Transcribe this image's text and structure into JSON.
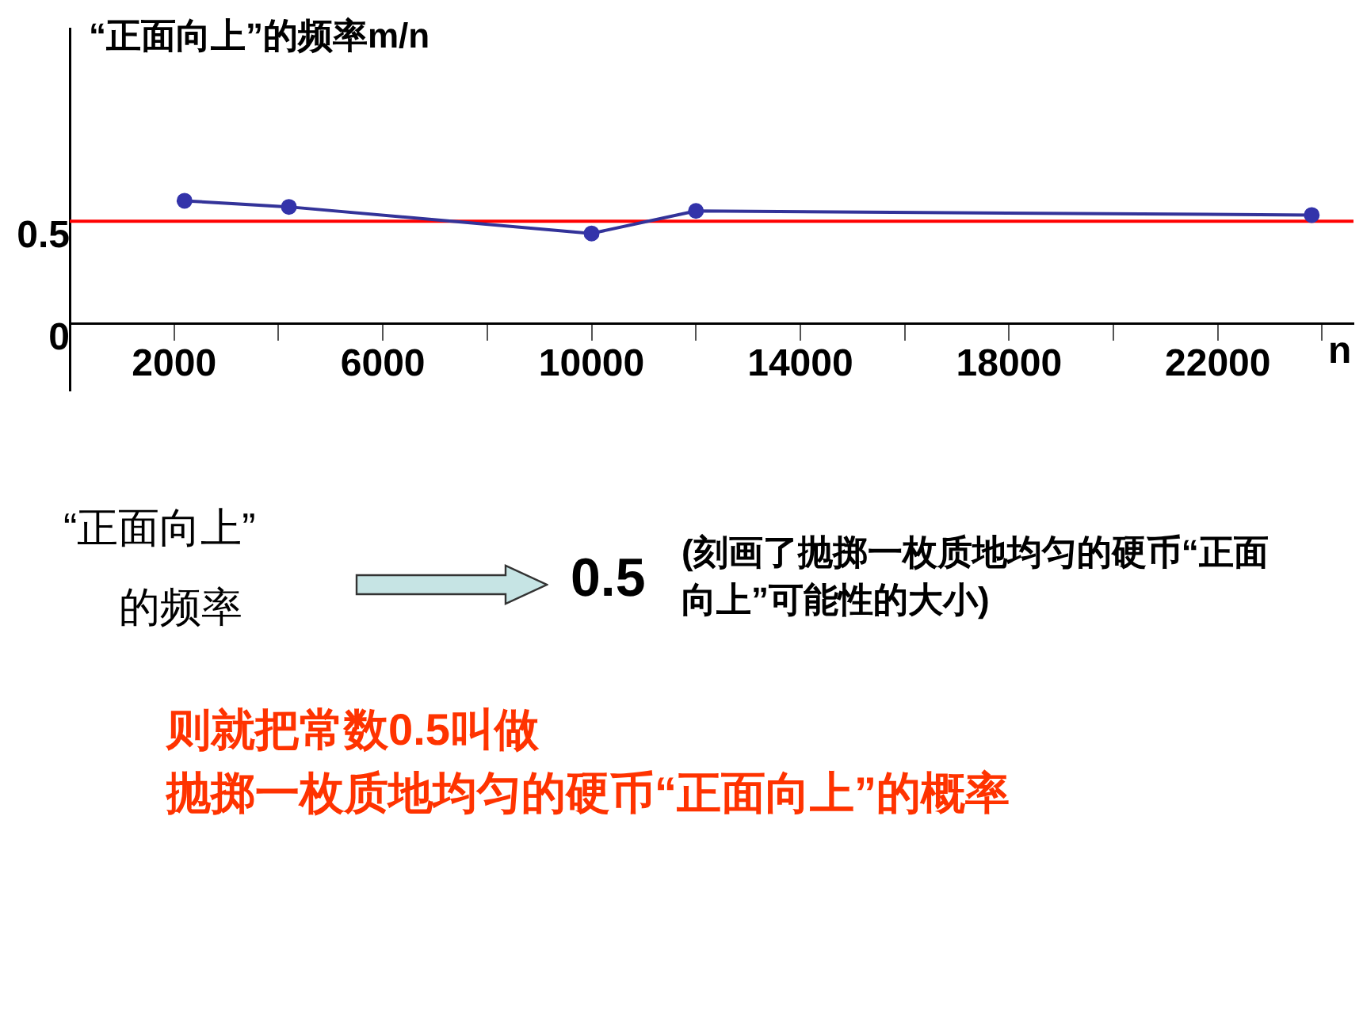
{
  "chart_data": {
    "type": "line",
    "ylabel": "“正面向上”的频率m/n",
    "xlabel": "n",
    "x": [
      2200,
      4200,
      10000,
      12000,
      23800
    ],
    "series": [
      {
        "color": "#333399",
        "values": [
          0.6,
          0.57,
          0.44,
          0.55,
          0.53
        ]
      }
    ],
    "xlim": [
      0,
      24600
    ],
    "xticks": [
      {
        "value": 0,
        "label": null
      },
      2000,
      {
        "value": 4000,
        "label": null
      },
      6000,
      {
        "value": 8000,
        "label": null
      },
      10000,
      {
        "value": 12000,
        "label": null
      },
      14000,
      {
        "value": 16000,
        "label": null
      },
      18000,
      {
        "value": 20000,
        "label": null
      },
      22000,
      {
        "value": 24000,
        "label": null
      }
    ],
    "ylim": [
      -0.33,
      1.44
    ],
    "yticks": [
      0,
      0.5
    ],
    "ref_lines": [
      {
        "axis": "y",
        "value": 0.5,
        "color": "#ff0000"
      }
    ],
    "marker": "circle",
    "grid": false,
    "legend": false,
    "annotations": [
      "“正面向上”",
      "的频率",
      "0.5",
      "(刻画了抛掷一枚质地均匀的硬币“正面向上”可能性的大小)",
      "则就把常数0.5叫做",
      "抛掷一枚质地均匀的硬币“正面向上”的概率"
    ]
  }
}
